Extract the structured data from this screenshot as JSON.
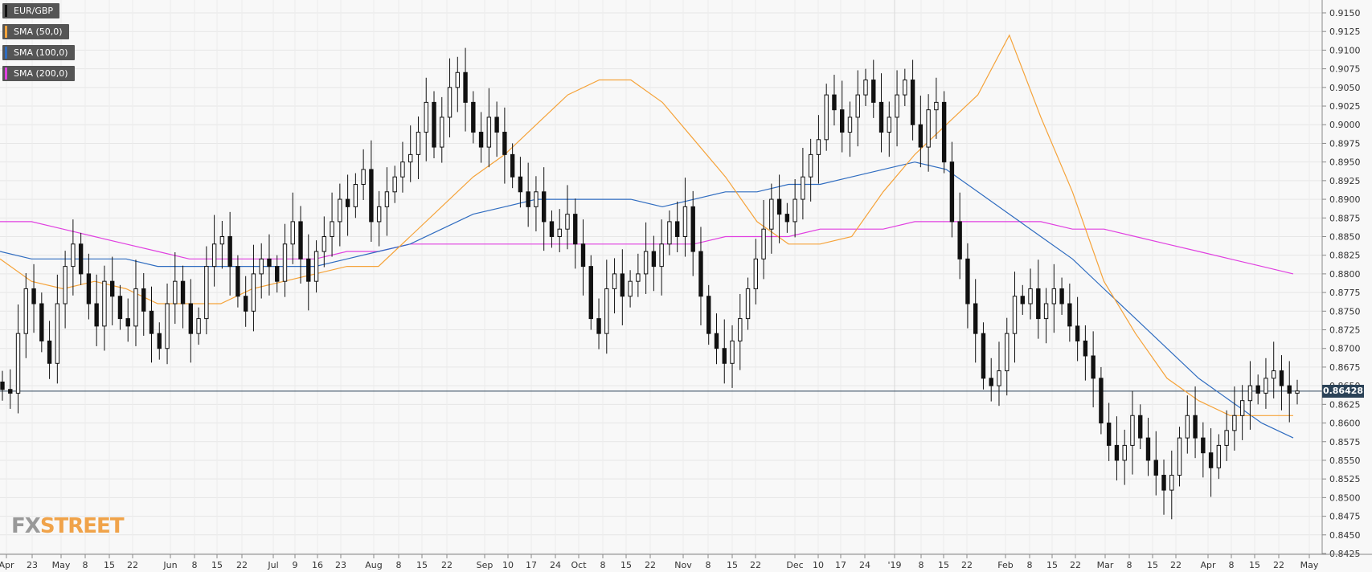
{
  "legend": [
    {
      "label": "EUR/GBP",
      "color": "#111111"
    },
    {
      "label": "SMA (50,0)",
      "color": "#f5a33a"
    },
    {
      "label": "SMA (100,0)",
      "color": "#2f6cc0"
    },
    {
      "label": "SMA (200,0)",
      "color": "#e040e0"
    }
  ],
  "logo": {
    "fx": "FX",
    "street": "STREET"
  },
  "current_price": "0.86428",
  "chart_data": {
    "type": "candlestick",
    "symbol": "EUR/GBP",
    "ylim": [
      0.8425,
      0.915
    ],
    "y_ticks": [
      "0.9150",
      "0.9125",
      "0.9100",
      "0.9075",
      "0.9050",
      "0.9025",
      "0.9000",
      "0.8975",
      "0.8950",
      "0.8925",
      "0.8900",
      "0.8875",
      "0.8850",
      "0.8825",
      "0.8800",
      "0.8775",
      "0.8750",
      "0.8725",
      "0.8700",
      "0.8675",
      "0.8650",
      "0.8625",
      "0.8600",
      "0.8575",
      "0.8550",
      "0.8525",
      "0.8500",
      "0.8475",
      "0.8450",
      "0.8425"
    ],
    "x_ticks": [
      "Apr",
      "23",
      "May",
      "8",
      "15",
      "22",
      "Jun",
      "8",
      "15",
      "22",
      "Jul",
      "9",
      "16",
      "23",
      "Aug",
      "8",
      "15",
      "22",
      "Sep",
      "10",
      "17",
      "24",
      "Oct",
      "8",
      "15",
      "22",
      "Nov",
      "8",
      "15",
      "22",
      "Dec",
      "10",
      "17",
      "24",
      "'19",
      "8",
      "15",
      "22",
      "Feb",
      "8",
      "15",
      "22",
      "Mar",
      "8",
      "15",
      "22",
      "Apr",
      "8",
      "15",
      "22",
      "May"
    ],
    "last_price": 0.86428,
    "sma50": [
      0.882,
      0.879,
      0.878,
      0.879,
      0.878,
      0.876,
      0.876,
      0.876,
      0.878,
      0.879,
      0.88,
      0.881,
      0.881,
      0.885,
      0.889,
      0.893,
      0.896,
      0.9,
      0.904,
      0.906,
      0.906,
      0.903,
      0.898,
      0.893,
      0.887,
      0.884,
      0.884,
      0.885,
      0.891,
      0.896,
      0.9,
      0.904,
      0.912,
      0.901,
      0.891,
      0.879,
      0.872,
      0.866,
      0.863,
      0.861,
      0.861,
      0.861
    ],
    "sma100": [
      0.883,
      0.882,
      0.882,
      0.882,
      0.882,
      0.881,
      0.881,
      0.881,
      0.881,
      0.881,
      0.881,
      0.882,
      0.883,
      0.884,
      0.886,
      0.888,
      0.889,
      0.89,
      0.89,
      0.89,
      0.89,
      0.889,
      0.89,
      0.891,
      0.891,
      0.892,
      0.892,
      0.893,
      0.894,
      0.895,
      0.894,
      0.891,
      0.888,
      0.885,
      0.882,
      0.878,
      0.874,
      0.87,
      0.866,
      0.863,
      0.86,
      0.858
    ],
    "sma200": [
      0.887,
      0.887,
      0.886,
      0.885,
      0.884,
      0.883,
      0.882,
      0.882,
      0.882,
      0.882,
      0.882,
      0.883,
      0.883,
      0.884,
      0.884,
      0.884,
      0.884,
      0.884,
      0.884,
      0.884,
      0.884,
      0.884,
      0.884,
      0.885,
      0.885,
      0.885,
      0.886,
      0.886,
      0.886,
      0.887,
      0.887,
      0.887,
      0.887,
      0.887,
      0.886,
      0.886,
      0.885,
      0.884,
      0.883,
      0.882,
      0.881,
      0.88
    ],
    "candles_close": [
      0.8645,
      0.864,
      0.872,
      0.878,
      0.876,
      0.871,
      0.868,
      0.876,
      0.881,
      0.884,
      0.88,
      0.876,
      0.873,
      0.879,
      0.877,
      0.874,
      0.873,
      0.878,
      0.875,
      0.872,
      0.87,
      0.876,
      0.879,
      0.876,
      0.872,
      0.874,
      0.881,
      0.884,
      0.885,
      0.881,
      0.877,
      0.875,
      0.88,
      0.882,
      0.881,
      0.879,
      0.884,
      0.887,
      0.882,
      0.879,
      0.883,
      0.885,
      0.887,
      0.89,
      0.889,
      0.892,
      0.894,
      0.887,
      0.889,
      0.891,
      0.893,
      0.895,
      0.896,
      0.899,
      0.903,
      0.897,
      0.901,
      0.905,
      0.907,
      0.903,
      0.899,
      0.897,
      0.901,
      0.899,
      0.896,
      0.893,
      0.891,
      0.889,
      0.891,
      0.887,
      0.885,
      0.886,
      0.888,
      0.884,
      0.881,
      0.874,
      0.872,
      0.878,
      0.88,
      0.877,
      0.879,
      0.88,
      0.883,
      0.881,
      0.884,
      0.887,
      0.885,
      0.889,
      0.883,
      0.877,
      0.872,
      0.87,
      0.868,
      0.871,
      0.874,
      0.878,
      0.882,
      0.886,
      0.89,
      0.888,
      0.887,
      0.89,
      0.893,
      0.896,
      0.898,
      0.904,
      0.902,
      0.899,
      0.901,
      0.904,
      0.906,
      0.903,
      0.899,
      0.901,
      0.904,
      0.906,
      0.9,
      0.897,
      0.902,
      0.903,
      0.895,
      0.887,
      0.882,
      0.876,
      0.872,
      0.866,
      0.865,
      0.867,
      0.872,
      0.877,
      0.876,
      0.878,
      0.874,
      0.876,
      0.878,
      0.876,
      0.873,
      0.871,
      0.869,
      0.866,
      0.86,
      0.857,
      0.855,
      0.857,
      0.861,
      0.858,
      0.855,
      0.853,
      0.851,
      0.853,
      0.858,
      0.861,
      0.858,
      0.856,
      0.854,
      0.857,
      0.859,
      0.861,
      0.863,
      0.865,
      0.864,
      0.866,
      0.867,
      0.865,
      0.864,
      0.8643
    ]
  }
}
